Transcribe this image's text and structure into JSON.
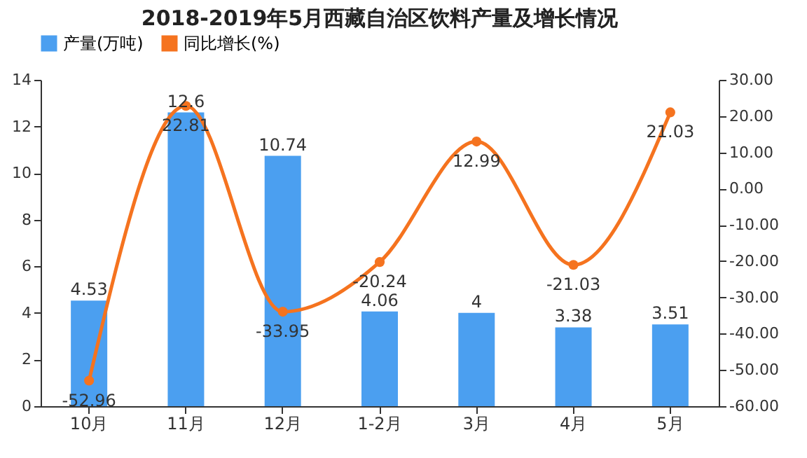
{
  "chart_data": {
    "type": "bar",
    "title": "2018-2019年5月西藏自治区饮料产量及增长情况",
    "categories": [
      "10月",
      "11月",
      "12月",
      "1-2月",
      "3月",
      "4月",
      "5月"
    ],
    "series": [
      {
        "name": "产量(万吨)",
        "color": "#4b9ff0",
        "values": [
          4.53,
          12.6,
          10.74,
          4.06,
          4,
          3.38,
          3.51
        ]
      },
      {
        "name": "同比增长(%)",
        "type": "line",
        "axis": "y2",
        "color": "#f5731f",
        "values": [
          -52.96,
          22.81,
          -33.95,
          -20.24,
          12.99,
          -21.03,
          21.03
        ]
      }
    ],
    "ylim": [
      0,
      14
    ],
    "yticks": [
      0,
      2,
      4,
      6,
      8,
      10,
      12,
      14
    ],
    "y2lim": [
      -60,
      30
    ],
    "y2ticks": [
      {
        "value": -60,
        "label": "-60.00"
      },
      {
        "value": -50,
        "label": "-50.00"
      },
      {
        "value": -40,
        "label": "-40.00"
      },
      {
        "value": -30,
        "label": "-30.00"
      },
      {
        "value": -20,
        "label": "-20.00"
      },
      {
        "value": -10,
        "label": "-10.00"
      },
      {
        "value": 0,
        "label": "0.00"
      },
      {
        "value": 10,
        "label": "10.00"
      },
      {
        "value": 20,
        "label": "20.00"
      },
      {
        "value": 30,
        "label": "30.00"
      }
    ],
    "data_labels": true,
    "legend": "top",
    "grid": false,
    "marker": "circle",
    "line_style": "solid"
  }
}
